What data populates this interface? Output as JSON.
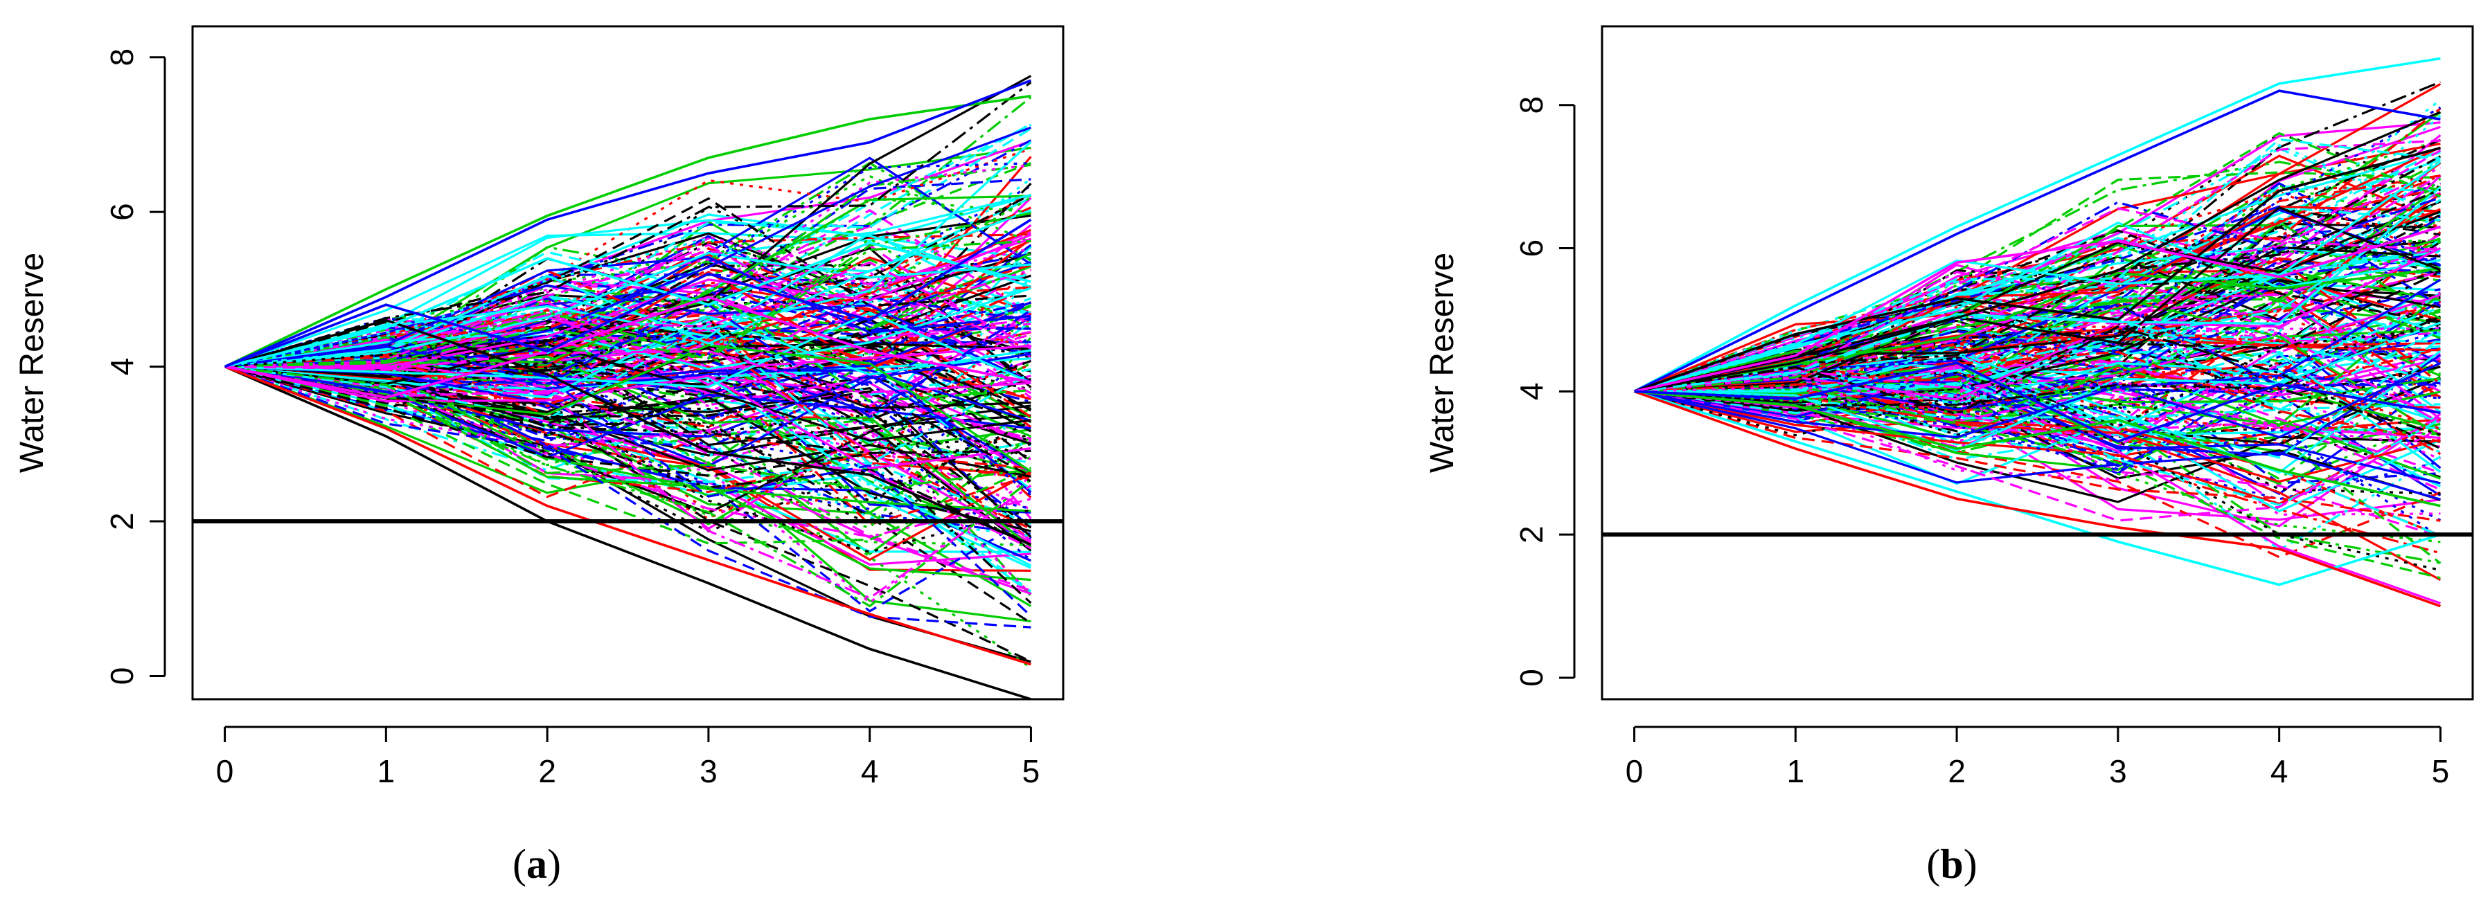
{
  "chart_data": [
    {
      "type": "line",
      "panel": "a",
      "caption_open": "(",
      "caption_letter": "a",
      "caption_close": ")",
      "ylabel": "Water Reserve",
      "xlabel": "",
      "xlim": [
        -0.2,
        5.2
      ],
      "ylim": [
        -0.3,
        8.4
      ],
      "x_ticks": [
        "0",
        "1",
        "2",
        "3",
        "4",
        "5"
      ],
      "y_ticks": [
        "0",
        "2",
        "4",
        "6",
        "8"
      ],
      "threshold": 2,
      "start_value": 4,
      "envelope_upper": [
        4,
        5.0,
        5.95,
        6.7,
        7.2,
        8.05
      ],
      "envelope_lower": [
        4,
        3.0,
        2.0,
        1.2,
        0.35,
        -0.3
      ],
      "series_count_note": "",
      "highlight_series": [
        {
          "values": [
            4,
            4.6,
            3.9,
            2.9,
            2.6,
            1.7
          ],
          "color": "#000000"
        },
        {
          "values": [
            4,
            3.1,
            2.0,
            1.2,
            0.35,
            -0.3
          ],
          "color": "#000000"
        },
        {
          "values": [
            4,
            5.0,
            5.95,
            6.7,
            7.2,
            7.5
          ],
          "color": "#00cd00"
        },
        {
          "values": [
            4,
            4.9,
            5.9,
            6.5,
            6.9,
            7.7
          ],
          "color": "#0000ff"
        },
        {
          "values": [
            4,
            3.2,
            2.2,
            1.5,
            0.8,
            0.15
          ],
          "color": "#ff0000"
        },
        {
          "values": [
            4,
            4.5,
            5.4,
            4.8,
            5.6,
            5.1
          ],
          "color": "#00ffff"
        },
        {
          "values": [
            4,
            3.6,
            4.2,
            4.9,
            4.2,
            3.8
          ],
          "color": "#ff00ff"
        },
        {
          "values": [
            4,
            4.8,
            4.2,
            5.2,
            4.6,
            5.9
          ],
          "color": "#0000ff"
        }
      ],
      "random_seed": 7,
      "random_count": 260,
      "colors": [
        "#000000",
        "#ff0000",
        "#00cd00",
        "#0000ff",
        "#00ffff",
        "#ff00ff"
      ]
    },
    {
      "type": "line",
      "panel": "b",
      "caption_open": "(",
      "caption_letter": "b",
      "caption_close": ")",
      "ylabel": "Water Reserve",
      "xlabel": "",
      "xlim": [
        -0.2,
        5.2
      ],
      "ylim": [
        -0.3,
        9.1
      ],
      "x_ticks": [
        "0",
        "1",
        "2",
        "3",
        "4",
        "5"
      ],
      "y_ticks": [
        "0",
        "2",
        "4",
        "6",
        "8"
      ],
      "threshold": 2,
      "start_value": 4,
      "envelope_upper": [
        4,
        5.2,
        6.3,
        7.3,
        8.3,
        8.65
      ],
      "envelope_lower": [
        4,
        3.2,
        2.5,
        1.9,
        1.3,
        1.0
      ],
      "highlight_series": [
        {
          "values": [
            4,
            5.2,
            6.3,
            7.3,
            8.3,
            8.65
          ],
          "color": "#00ffff"
        },
        {
          "values": [
            4,
            5.1,
            6.2,
            7.2,
            8.2,
            7.8
          ],
          "color": "#0000ff"
        },
        {
          "values": [
            4,
            3.3,
            2.6,
            1.9,
            1.3,
            2.0
          ],
          "color": "#00ffff"
        },
        {
          "values": [
            4,
            3.2,
            2.5,
            2.1,
            1.8,
            1.0
          ],
          "color": "#ff0000"
        },
        {
          "values": [
            4,
            4.8,
            5.3,
            5.0,
            6.8,
            7.4
          ],
          "color": "#000000"
        },
        {
          "values": [
            4,
            3.8,
            3.2,
            3.6,
            2.9,
            2.4
          ],
          "color": "#00cd00"
        },
        {
          "values": [
            4,
            4.5,
            5.8,
            6.1,
            5.6,
            6.3
          ],
          "color": "#ff00ff"
        },
        {
          "values": [
            4,
            3.9,
            4.4,
            3.3,
            4.1,
            3.7
          ],
          "color": "#0000ff"
        }
      ],
      "random_seed": 19,
      "random_count": 260,
      "colors": [
        "#000000",
        "#ff0000",
        "#00cd00",
        "#0000ff",
        "#00ffff",
        "#ff00ff"
      ]
    }
  ]
}
